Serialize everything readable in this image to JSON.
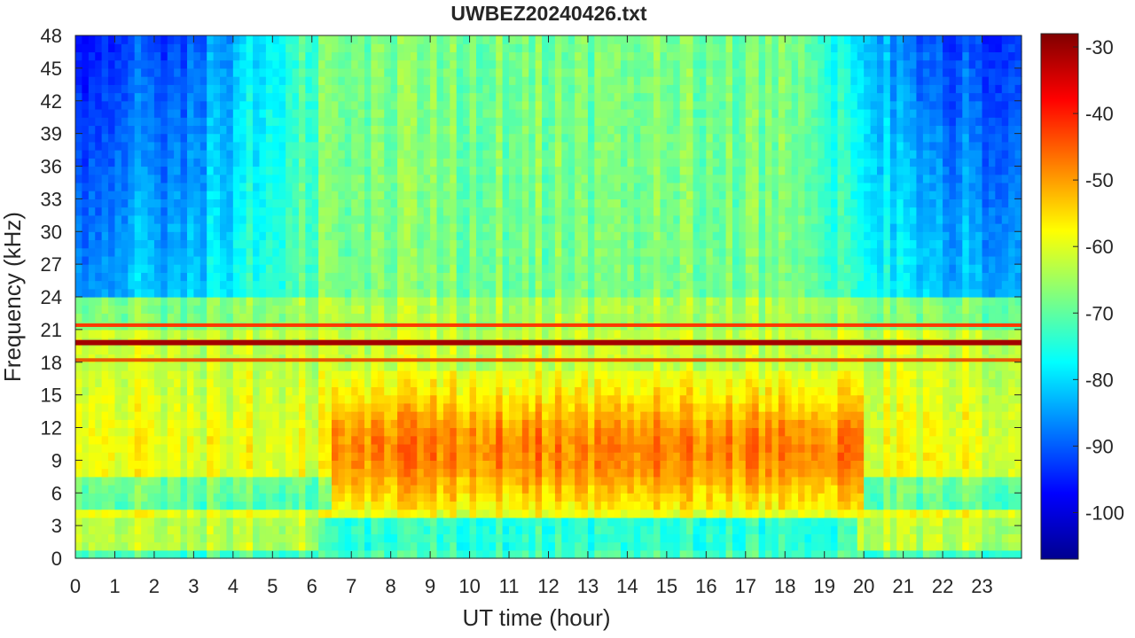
{
  "chart_data": {
    "type": "heatmap",
    "title": "UWBEZ20240426.txt",
    "xlabel": "UT time (hour)",
    "ylabel": "Frequency (kHz)",
    "xlim": [
      0,
      24
    ],
    "ylim": [
      0,
      48
    ],
    "x_ticks": [
      "0",
      "1",
      "2",
      "3",
      "4",
      "5",
      "6",
      "7",
      "8",
      "9",
      "10",
      "11",
      "12",
      "13",
      "14",
      "15",
      "16",
      "17",
      "18",
      "19",
      "20",
      "21",
      "22",
      "23"
    ],
    "y_ticks": [
      "0",
      "3",
      "6",
      "9",
      "12",
      "15",
      "18",
      "21",
      "24",
      "27",
      "30",
      "33",
      "36",
      "39",
      "42",
      "45",
      "48"
    ],
    "colorbar": {
      "colormap": "jet",
      "range": [
        -107,
        -28
      ],
      "ticks": [
        "-30",
        "-40",
        "-50",
        "-60",
        "-70",
        "-80",
        "-90",
        "-100"
      ]
    },
    "features": {
      "transmitter_lines_khz": [
        19.8,
        18.2,
        21.4
      ],
      "noise_band_khz": [
        4.5,
        17
      ],
      "noise_band_hours": [
        6.5,
        20
      ]
    }
  }
}
